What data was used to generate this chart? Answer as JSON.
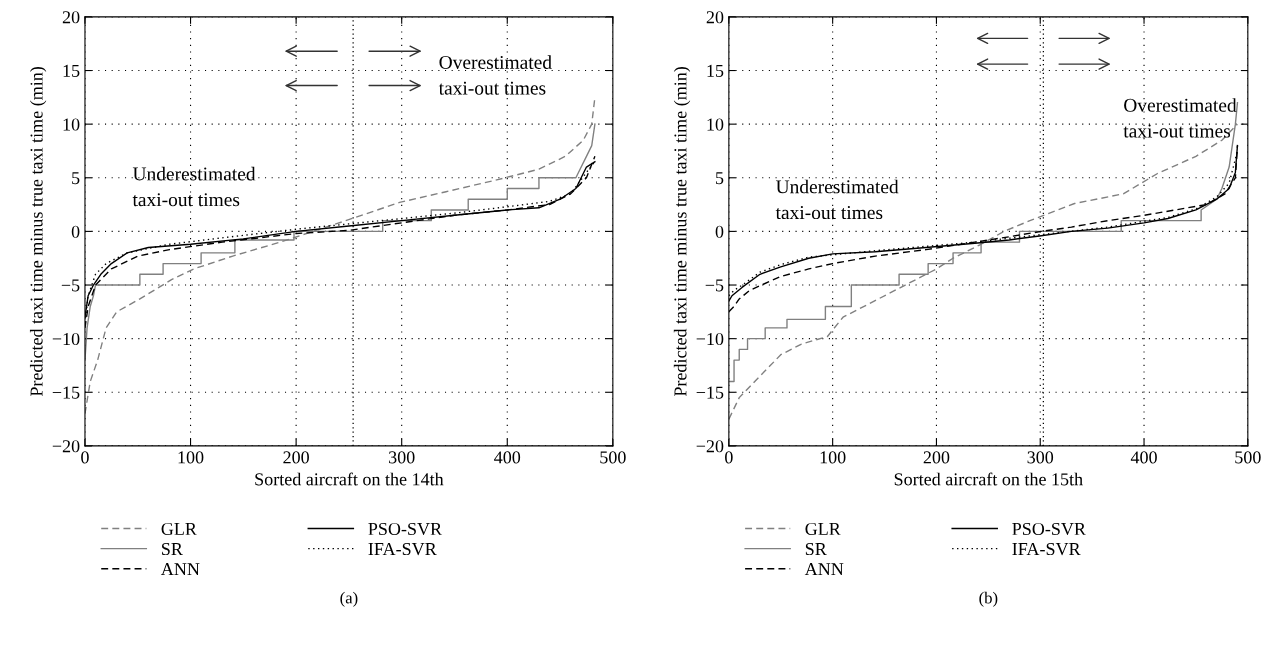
{
  "chart_data": [
    {
      "type": "line",
      "title": "(a)",
      "xlabel": "Sorted aircraft on the 14th",
      "ylabel": "Predicted taxi time minus true taxi time (min)",
      "xlim": [
        0,
        500
      ],
      "xticks": [
        0,
        100,
        200,
        300,
        400,
        500
      ],
      "ylim": [
        -20,
        20
      ],
      "yticks": [
        -20,
        -15,
        -10,
        -5,
        0,
        5,
        10,
        15,
        20
      ],
      "grid": true,
      "legend": "bottom",
      "annotations": [
        "Overestimated\ntaxi-out times",
        "Underestimated\ntaxi-out times"
      ],
      "ref_lines": [
        {
          "axis": "x",
          "value": 254,
          "color": "#000000",
          "line_style": "dotted"
        }
      ],
      "series": [
        {
          "name": "GLR",
          "color": "#808080",
          "line_style": "dashed",
          "x": [
            0,
            5,
            12,
            20,
            30,
            52,
            82,
            103,
            140,
            185,
            247,
            298,
            342,
            390,
            430,
            455,
            472,
            480,
            483
          ],
          "values": [
            -17,
            -14,
            -12,
            -9,
            -7.5,
            -6.3,
            -4.5,
            -3.5,
            -2.3,
            -1,
            1,
            2.7,
            3.7,
            4.8,
            5.8,
            7,
            8.5,
            10,
            12.5
          ]
        },
        {
          "name": "SR",
          "color": "#808080",
          "line_style": "solid",
          "x": [
            0,
            2,
            5,
            8,
            10,
            24,
            24,
            52,
            52,
            74,
            74,
            110,
            110,
            142,
            142,
            198,
            198,
            282,
            282,
            328,
            328,
            363,
            363,
            400,
            400,
            430,
            430,
            465,
            470,
            475,
            480,
            483
          ],
          "values": [
            -12,
            -9,
            -7,
            -6,
            -5,
            -5,
            -5,
            -5,
            -4,
            -4,
            -3,
            -3,
            -2,
            -2,
            -0.8,
            -0.8,
            0,
            0,
            1,
            1,
            2,
            2,
            3,
            3,
            4,
            4,
            5,
            5,
            6,
            7,
            8,
            10
          ]
        },
        {
          "name": "ANN",
          "color": "#000000",
          "line_style": "dashed",
          "x": [
            0,
            3,
            10,
            25,
            50,
            80,
            130,
            200,
            250,
            300,
            350,
            400,
            440,
            460,
            475,
            483
          ],
          "values": [
            -9,
            -7,
            -5,
            -3.5,
            -2.3,
            -1.7,
            -1,
            -0.2,
            0.1,
            0.8,
            1.5,
            2,
            2.5,
            3.5,
            5,
            7
          ]
        },
        {
          "name": "PSO-SVR",
          "color": "#000000",
          "line_style": "solid",
          "x": [
            0,
            3,
            8,
            15,
            25,
            40,
            60,
            100,
            150,
            200,
            250,
            300,
            350,
            400,
            430,
            450,
            465,
            475,
            483
          ],
          "values": [
            -8,
            -6,
            -5,
            -4,
            -3,
            -2,
            -1.5,
            -1.2,
            -0.7,
            0,
            0.5,
            1,
            1.5,
            2,
            2.2,
            3,
            4,
            6,
            6.5
          ]
        },
        {
          "name": "IFA-SVR",
          "color": "#000000",
          "line_style": "dotted",
          "x": [
            0,
            3,
            10,
            20,
            40,
            80,
            130,
            200,
            250,
            300,
            350,
            400,
            440,
            460,
            475,
            483
          ],
          "values": [
            -8.5,
            -6,
            -4,
            -3,
            -2,
            -1.2,
            -0.6,
            0.2,
            0.7,
            1.2,
            1.7,
            2.3,
            2.8,
            3.5,
            5.5,
            6.5
          ]
        }
      ]
    },
    {
      "type": "line",
      "title": "(b)",
      "xlabel": "Sorted aircraft on the 15th",
      "ylabel": "Predicted taxi time minus true taxi time (min)",
      "xlim": [
        0,
        500
      ],
      "xticks": [
        0,
        100,
        200,
        300,
        400,
        500
      ],
      "ylim": [
        -20,
        20
      ],
      "yticks": [
        -20,
        -15,
        -10,
        -5,
        0,
        5,
        10,
        15,
        20
      ],
      "grid": true,
      "legend": "bottom",
      "annotations": [
        "Overestimated\ntaxi-out times",
        "Underestimated\ntaxi-out times"
      ],
      "ref_lines": [
        {
          "axis": "x",
          "value": 303,
          "color": "#000000",
          "line_style": "dotted"
        }
      ],
      "series": [
        {
          "name": "GLR",
          "color": "#808080",
          "line_style": "dashed",
          "x": [
            0,
            10,
            30,
            50,
            70,
            95,
            110,
            140,
            170,
            200,
            216,
            243,
            265,
            290,
            333,
            380,
            413,
            450,
            475,
            490
          ],
          "values": [
            -17.5,
            -15.5,
            -13.5,
            -11.5,
            -10.5,
            -9.8,
            -8,
            -6.5,
            -5,
            -3.5,
            -2.5,
            -1.2,
            0,
            1,
            2.6,
            3.5,
            5.4,
            7,
            8.5,
            10
          ]
        },
        {
          "name": "SR",
          "color": "#808080",
          "line_style": "solid",
          "x": [
            0,
            5,
            5,
            10,
            10,
            18,
            18,
            35,
            35,
            56,
            56,
            93,
            93,
            118,
            118,
            164,
            164,
            192,
            192,
            216,
            216,
            243,
            243,
            280,
            280,
            378,
            378,
            455,
            455,
            470,
            475,
            482,
            488,
            490
          ],
          "values": [
            -14,
            -14,
            -12,
            -12,
            -11,
            -11,
            -10,
            -10,
            -9,
            -9,
            -8.2,
            -8.2,
            -7,
            -7,
            -5,
            -5,
            -4,
            -4,
            -3,
            -3,
            -2,
            -2,
            -1,
            -1,
            0,
            0,
            1,
            1,
            2,
            3,
            4,
            6,
            10,
            12
          ]
        },
        {
          "name": "ANN",
          "color": "#000000",
          "line_style": "dashed",
          "x": [
            0,
            5,
            10,
            20,
            50,
            77,
            100,
            141,
            190,
            237,
            270,
            301,
            330,
            365,
            400,
            430,
            460,
            478,
            488,
            490
          ],
          "values": [
            -7.5,
            -7,
            -6.3,
            -5.5,
            -4.2,
            -3.5,
            -3,
            -2.3,
            -1.7,
            -1,
            -0.5,
            0,
            0.4,
            1,
            1.5,
            2,
            2.5,
            3.5,
            5,
            8
          ]
        },
        {
          "name": "PSO-SVR",
          "color": "#000000",
          "line_style": "solid",
          "x": [
            0,
            3,
            13,
            30,
            50,
            77,
            100,
            141,
            190,
            237,
            270,
            301,
            330,
            365,
            400,
            423,
            450,
            470,
            482,
            488,
            490
          ],
          "values": [
            -6.5,
            -6,
            -5.2,
            -4,
            -3.3,
            -2.5,
            -2.1,
            -1.9,
            -1.5,
            -1.1,
            -0.8,
            -0.4,
            0,
            0.3,
            0.8,
            1.2,
            2,
            3,
            4,
            5.5,
            8
          ]
        },
        {
          "name": "IFA-SVR",
          "color": "#000000",
          "line_style": "dotted",
          "x": [
            0,
            5,
            13,
            30,
            50,
            77,
            141,
            237,
            301,
            365,
            423,
            450,
            470,
            482,
            490
          ],
          "values": [
            -6,
            -5.5,
            -5,
            -3.8,
            -3.1,
            -2.4,
            -1.8,
            -1,
            -0.3,
            0.4,
            1.3,
            2.1,
            3.2,
            4.5,
            7.5
          ]
        }
      ]
    }
  ]
}
